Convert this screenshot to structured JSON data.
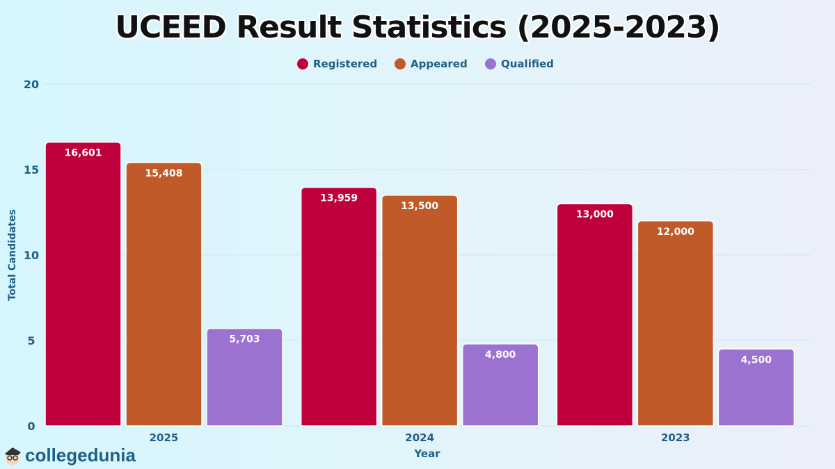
{
  "chart_data": {
    "type": "bar",
    "title": "UCEED Result Statistics (2025-2023)",
    "xlabel": "Year",
    "ylabel": "Total Candidates",
    "categories": [
      "2025",
      "2024",
      "2023"
    ],
    "yticks": [
      "0",
      "5",
      "10",
      "15",
      "20"
    ],
    "ylim": [
      0,
      20
    ],
    "grid": true,
    "legend_position": "top-center",
    "series": [
      {
        "name": "Registered",
        "color": "#c0003c",
        "values": [
          16601,
          13959,
          13000
        ],
        "labels": [
          "16,601",
          "13,959",
          "13,000"
        ]
      },
      {
        "name": "Appeared",
        "color": "#c05a28",
        "values": [
          15408,
          13500,
          12000
        ],
        "labels": [
          "15,408",
          "13,500",
          "12,000"
        ]
      },
      {
        "name": "Qualified",
        "color": "#9b72cf",
        "values": [
          5703,
          4800,
          4500
        ],
        "labels": [
          "5,703",
          "4,800",
          "4,500"
        ]
      }
    ]
  },
  "logo": {
    "text": "collegedunia"
  }
}
